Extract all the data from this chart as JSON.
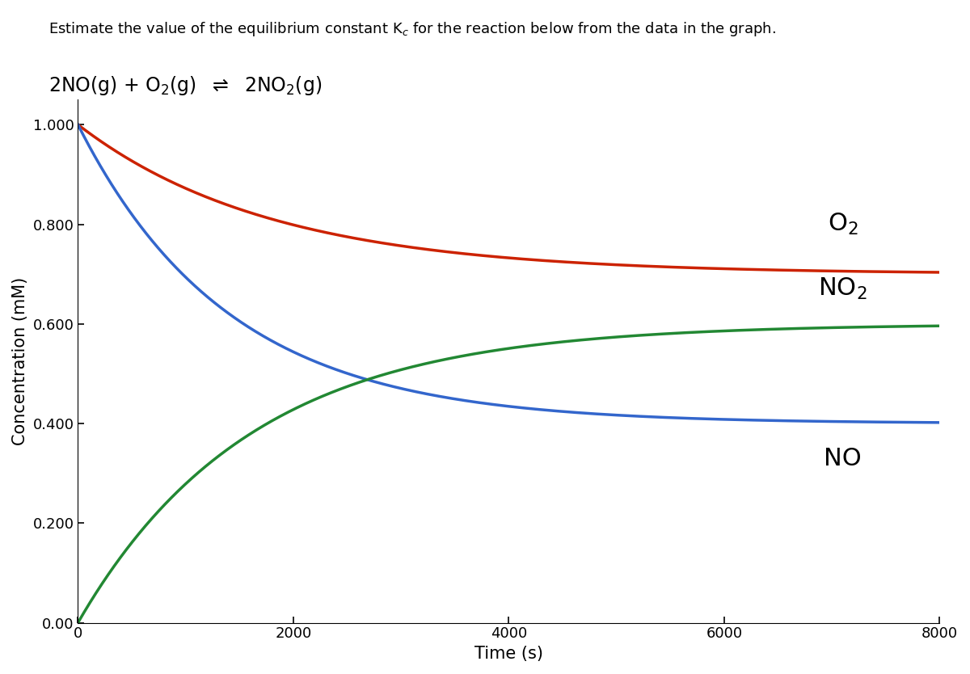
{
  "xlabel": "Time (s)",
  "ylabel": "Concentration (mM)",
  "xlim": [
    0,
    8000
  ],
  "ylim": [
    0.0,
    1.05
  ],
  "yticks": [
    0.0,
    0.2,
    0.4,
    0.6,
    0.8,
    1.0
  ],
  "xticks": [
    0,
    2000,
    4000,
    6000,
    8000
  ],
  "O2_color": "#CC2200",
  "NO_color": "#3366CC",
  "NO2_color": "#228833",
  "O2_init": 1.0,
  "O2_eq": 0.7,
  "NO_init": 1.0,
  "NO_eq": 0.4,
  "NO2_init": 0.0,
  "NO2_eq": 0.6,
  "time_constant_O2": 1800,
  "time_constant_NO": 1400,
  "time_constant_NO2": 1600,
  "background_color": "#ffffff",
  "fig_width": 12.0,
  "fig_height": 8.34
}
